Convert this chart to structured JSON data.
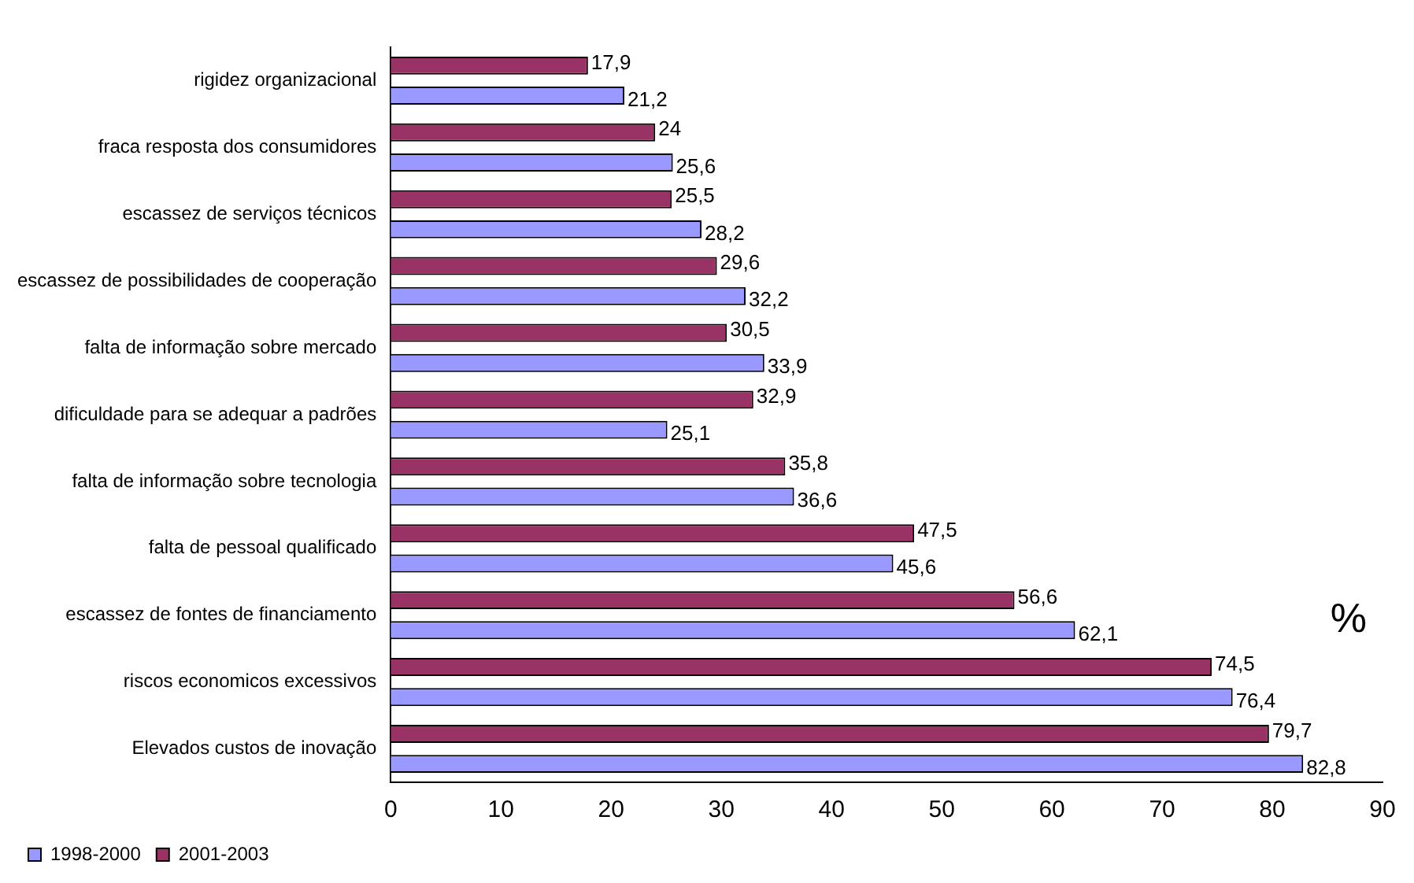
{
  "chart_data": {
    "type": "bar",
    "orientation": "horizontal",
    "categories": [
      "rigidez organizacional",
      "fraca resposta dos consumidores",
      "escassez de serviços técnicos",
      "escassez de possibilidades de cooperação",
      "falta de informação sobre mercado",
      "dificuldade para se adequar a padrões",
      "falta de informação sobre tecnologia",
      "falta de pessoal qualificado",
      "escassez de fontes de financiamento",
      "riscos economicos excessivos",
      "Elevados custos de inovação"
    ],
    "series": [
      {
        "name": "1998-2000",
        "color": "#9999ff",
        "values": [
          21.2,
          25.6,
          28.2,
          32.2,
          33.9,
          25.1,
          36.6,
          45.6,
          62.1,
          76.4,
          82.8
        ],
        "value_labels": [
          "21,2",
          "25,6",
          "28,2",
          "32,2",
          "33,9",
          "25,1",
          "36,6",
          "45,6",
          "62,1",
          "76,4",
          "82,8"
        ]
      },
      {
        "name": "2001-2003",
        "color": "#993366",
        "values": [
          17.9,
          24,
          25.5,
          29.6,
          30.5,
          32.9,
          35.8,
          47.5,
          56.6,
          74.5,
          79.7
        ],
        "value_labels": [
          "17,9",
          "24",
          "25,5",
          "29,6",
          "30,5",
          "32,9",
          "35,8",
          "47,5",
          "56,6",
          "74,5",
          "79,7"
        ]
      }
    ],
    "xlim": [
      0,
      90
    ],
    "xticks": [
      0,
      10,
      20,
      30,
      40,
      50,
      60,
      70,
      80,
      90
    ],
    "grid": false,
    "legend": "bottom left",
    "annotations": [
      "%"
    ]
  }
}
